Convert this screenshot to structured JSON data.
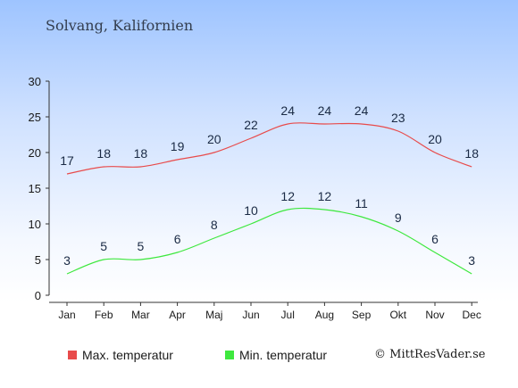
{
  "title": "Solvang, Kalifornien",
  "credit": "© MittResVader.se",
  "chart_data": {
    "type": "line",
    "categories": [
      "Jan",
      "Feb",
      "Mar",
      "Apr",
      "Maj",
      "Jun",
      "Jul",
      "Aug",
      "Sep",
      "Okt",
      "Nov",
      "Dec"
    ],
    "series": [
      {
        "name": "Max. temperatur",
        "color": "#e84b4b",
        "values": [
          17,
          18,
          18,
          19,
          20,
          22,
          24,
          24,
          24,
          23,
          20,
          18
        ]
      },
      {
        "name": "Min. temperatur",
        "color": "#3ee83e",
        "values": [
          3,
          5,
          5,
          6,
          8,
          10,
          12,
          12,
          11,
          9,
          6,
          3
        ]
      }
    ],
    "ylim": [
      0,
      30
    ],
    "yticks": [
      "0",
      "5",
      "10",
      "15",
      "20",
      "25",
      "30"
    ],
    "grid": false,
    "legend": "bottom-left"
  }
}
